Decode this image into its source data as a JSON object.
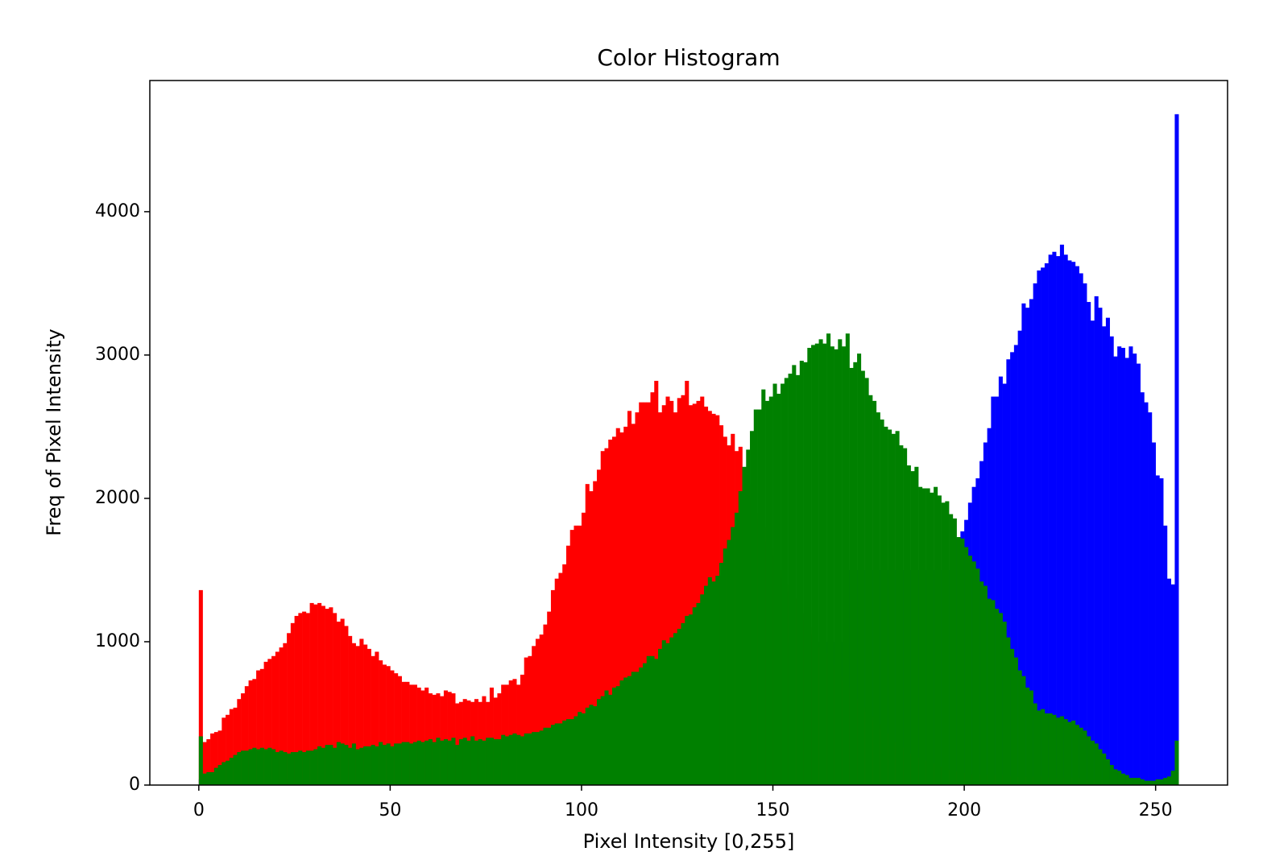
{
  "chart_data": {
    "type": "histogram",
    "title": "Color Histogram",
    "x_label": "Pixel Intensity [0,255]",
    "y_label": "Freq of Pixel Intensity",
    "bins": [
      0,
      1,
      2,
      3,
      4,
      5,
      6,
      7,
      8,
      9,
      10,
      11,
      12,
      13,
      14,
      15,
      16,
      17,
      18,
      19,
      20,
      21,
      22,
      23,
      24,
      25,
      26,
      27,
      28,
      29,
      30,
      31,
      32,
      33,
      34,
      35,
      36,
      37,
      38,
      39,
      40,
      41,
      42,
      43,
      44,
      45,
      46,
      47,
      48,
      49,
      50,
      51,
      52,
      53,
      54,
      55,
      56,
      57,
      58,
      59,
      60,
      61,
      62,
      63,
      64,
      65,
      66,
      67,
      68,
      69,
      70,
      71,
      72,
      73,
      74,
      75,
      76,
      77,
      78,
      79,
      80,
      81,
      82,
      83,
      84,
      85,
      86,
      87,
      88,
      89,
      90,
      91,
      92,
      93,
      94,
      95,
      96,
      97,
      98,
      99,
      100,
      101,
      102,
      103,
      104,
      105,
      106,
      107,
      108,
      109,
      110,
      111,
      112,
      113,
      114,
      115,
      116,
      117,
      118,
      119,
      120,
      121,
      122,
      123,
      124,
      125,
      126,
      127,
      128,
      129,
      130,
      131,
      132,
      133,
      134,
      135,
      136,
      137,
      138,
      139,
      140,
      141,
      142,
      143,
      144,
      145,
      146,
      147,
      148,
      149,
      150,
      151,
      152,
      153,
      154,
      155,
      156,
      157,
      158,
      159,
      160,
      161,
      162,
      163,
      164,
      165,
      166,
      167,
      168,
      169,
      170,
      171,
      172,
      173,
      174,
      175,
      176,
      177,
      178,
      179,
      180,
      181,
      182,
      183,
      184,
      185,
      186,
      187,
      188,
      189,
      190,
      191,
      192,
      193,
      194,
      195,
      196,
      197,
      198,
      199,
      200,
      201,
      202,
      203,
      204,
      205,
      206,
      207,
      208,
      209,
      210,
      211,
      212,
      213,
      214,
      215,
      216,
      217,
      218,
      219,
      220,
      221,
      222,
      223,
      224,
      225,
      226,
      227,
      228,
      229,
      230,
      231,
      232,
      233,
      234,
      235,
      236,
      237,
      238,
      239,
      240,
      241,
      242,
      243,
      244,
      245,
      246,
      247,
      248,
      249,
      250,
      251,
      252,
      253,
      254,
      255,
      256
    ],
    "series": [
      {
        "color": "#0000ff",
        "values": [
          40,
          40,
          40,
          40,
          40,
          40,
          40,
          40,
          40,
          40,
          40,
          40,
          40,
          40,
          40,
          40,
          40,
          40,
          40,
          40,
          40,
          40,
          40,
          40,
          40,
          40,
          40,
          40,
          40,
          40,
          40,
          40,
          40,
          40,
          40,
          40,
          40,
          40,
          40,
          40,
          40,
          40,
          40,
          40,
          40,
          40,
          40,
          40,
          40,
          40,
          40,
          40,
          40,
          40,
          40,
          40,
          40,
          40,
          40,
          40,
          40,
          40,
          40,
          40,
          40,
          40,
          40,
          40,
          40,
          40,
          40,
          40,
          40,
          40,
          40,
          40,
          40,
          40,
          40,
          40,
          40,
          40,
          40,
          40,
          40,
          40,
          40,
          40,
          40,
          40,
          40,
          40,
          40,
          40,
          40,
          40,
          40,
          40,
          40,
          40,
          200,
          200,
          200,
          200,
          200,
          200,
          200,
          200,
          200,
          200,
          200,
          200,
          200,
          200,
          200,
          200,
          200,
          200,
          200,
          200,
          200,
          200,
          200,
          200,
          200,
          200,
          200,
          200,
          200,
          200,
          200,
          200,
          200,
          200,
          200,
          200,
          200,
          200,
          200,
          200,
          1000,
          1000,
          1000,
          1000,
          1000,
          1000,
          1000,
          1000,
          1000,
          1000,
          1000,
          1000,
          1000,
          1000,
          1000,
          1000,
          1000,
          1000,
          1000,
          1000,
          1000,
          1000,
          1000,
          1000,
          1000,
          1000,
          1000,
          1000,
          1000,
          1000,
          1500,
          1500,
          1500,
          1500,
          1500,
          1500,
          1500,
          1500,
          1500,
          1500,
          1500,
          1500,
          1500,
          1500,
          1500,
          1500,
          1500,
          1500,
          1500,
          1500,
          1500,
          1500,
          1500,
          1500,
          1500,
          1500,
          1500,
          1500,
          1720,
          1770,
          1850,
          1970,
          2080,
          2140,
          2260,
          2390,
          2490,
          2710,
          2710,
          2850,
          2800,
          2970,
          3020,
          3070,
          3170,
          3360,
          3330,
          3390,
          3500,
          3590,
          3610,
          3640,
          3700,
          3720,
          3690,
          3770,
          3700,
          3660,
          3650,
          3620,
          3570,
          3500,
          3370,
          3240,
          3410,
          3330,
          3200,
          3260,
          3130,
          2990,
          3060,
          3050,
          2980,
          3060,
          3010,
          2940,
          2740,
          2670,
          2600,
          2390,
          2160,
          2140,
          1810,
          1440,
          1400,
          4680
        ]
      },
      {
        "color": "#ff0000",
        "values": [
          1360,
          300,
          320,
          360,
          370,
          380,
          470,
          490,
          530,
          540,
          600,
          640,
          690,
          730,
          740,
          800,
          810,
          860,
          880,
          900,
          930,
          960,
          990,
          1060,
          1130,
          1180,
          1200,
          1210,
          1200,
          1270,
          1260,
          1270,
          1250,
          1230,
          1240,
          1200,
          1140,
          1160,
          1110,
          1040,
          990,
          970,
          1020,
          980,
          950,
          900,
          930,
          870,
          840,
          830,
          800,
          780,
          760,
          720,
          720,
          700,
          700,
          680,
          660,
          680,
          640,
          630,
          640,
          620,
          660,
          650,
          640,
          570,
          580,
          600,
          590,
          580,
          600,
          580,
          620,
          580,
          680,
          610,
          640,
          700,
          700,
          730,
          740,
          700,
          770,
          890,
          900,
          970,
          1020,
          1050,
          1120,
          1210,
          1360,
          1440,
          1480,
          1540,
          1670,
          1780,
          1810,
          1810,
          1900,
          2100,
          2050,
          2120,
          2200,
          2330,
          2350,
          2410,
          2430,
          2490,
          2460,
          2500,
          2610,
          2520,
          2600,
          2670,
          2670,
          2670,
          2740,
          2820,
          2600,
          2650,
          2710,
          2680,
          2600,
          2700,
          2720,
          2820,
          2650,
          2660,
          2680,
          2710,
          2640,
          2610,
          2590,
          2580,
          2510,
          2430,
          2370,
          2450,
          2330,
          2360,
          2200,
          2100,
          2000,
          1900,
          1850,
          1800,
          1700,
          1650,
          1600,
          1500,
          1450,
          1400,
          1350,
          1300,
          1250,
          1200,
          1150,
          1100,
          1050,
          1000,
          960,
          920,
          880,
          840,
          800,
          760,
          720,
          680,
          640,
          600,
          570,
          540,
          510,
          480,
          450,
          420,
          390,
          360,
          330,
          300,
          280,
          260,
          240,
          220,
          200,
          190,
          180,
          170,
          160,
          150,
          140,
          130,
          120,
          110,
          100,
          95,
          90,
          85,
          80,
          75,
          70,
          70,
          70,
          70,
          70,
          70,
          70,
          70,
          60,
          60,
          60,
          60,
          60,
          60,
          60,
          60,
          60,
          60,
          50,
          50,
          50,
          50,
          50,
          50,
          50,
          50,
          50,
          50,
          40,
          40,
          40,
          40,
          40,
          40,
          40,
          40,
          40,
          40,
          20,
          20,
          20,
          20,
          20,
          20,
          20,
          20,
          20,
          20,
          20,
          20,
          20,
          20,
          20,
          100
        ]
      },
      {
        "color": "#008000",
        "values": [
          340,
          80,
          90,
          90,
          120,
          140,
          160,
          170,
          190,
          210,
          230,
          240,
          240,
          250,
          260,
          250,
          260,
          250,
          260,
          250,
          230,
          240,
          230,
          220,
          230,
          230,
          240,
          230,
          240,
          240,
          250,
          270,
          260,
          280,
          280,
          260,
          300,
          290,
          280,
          260,
          290,
          250,
          260,
          270,
          270,
          280,
          270,
          300,
          280,
          290,
          270,
          290,
          290,
          300,
          300,
          290,
          300,
          310,
          300,
          310,
          320,
          300,
          330,
          310,
          320,
          310,
          330,
          280,
          320,
          330,
          310,
          340,
          310,
          320,
          310,
          330,
          330,
          320,
          320,
          350,
          340,
          350,
          360,
          350,
          340,
          360,
          360,
          370,
          370,
          380,
          400,
          400,
          420,
          430,
          430,
          450,
          460,
          460,
          480,
          510,
          500,
          540,
          560,
          550,
          600,
          620,
          660,
          630,
          680,
          690,
          730,
          750,
          760,
          790,
          790,
          820,
          850,
          900,
          900,
          880,
          950,
          1010,
          990,
          1030,
          1060,
          1090,
          1130,
          1180,
          1190,
          1240,
          1270,
          1330,
          1390,
          1450,
          1420,
          1460,
          1550,
          1650,
          1710,
          1800,
          1900,
          2050,
          2220,
          2340,
          2470,
          2620,
          2620,
          2760,
          2680,
          2710,
          2800,
          2730,
          2800,
          2840,
          2870,
          2930,
          2860,
          2960,
          2950,
          3050,
          3070,
          3080,
          3110,
          3080,
          3150,
          3060,
          3040,
          3110,
          3060,
          3150,
          2910,
          2950,
          3010,
          2890,
          2840,
          2720,
          2680,
          2600,
          2550,
          2500,
          2480,
          2450,
          2470,
          2370,
          2350,
          2230,
          2190,
          2220,
          2080,
          2070,
          2070,
          2040,
          2080,
          2020,
          1970,
          1980,
          1890,
          1860,
          1730,
          1720,
          1660,
          1600,
          1560,
          1510,
          1420,
          1390,
          1300,
          1290,
          1230,
          1200,
          1140,
          1030,
          950,
          890,
          800,
          760,
          680,
          660,
          570,
          520,
          530,
          500,
          500,
          490,
          470,
          480,
          460,
          440,
          450,
          420,
          400,
          380,
          340,
          310,
          290,
          250,
          220,
          180,
          140,
          110,
          100,
          80,
          70,
          50,
          50,
          50,
          40,
          30,
          30,
          30,
          40,
          40,
          50,
          60,
          100,
          310
        ]
      }
    ],
    "xlim": [
      -12.8,
      268.8
    ],
    "xticks": [
      0,
      50,
      100,
      150,
      200,
      250
    ],
    "ylim": [
      0,
      4915
    ],
    "yticks": [
      0,
      1000,
      2000,
      3000,
      4000
    ]
  }
}
